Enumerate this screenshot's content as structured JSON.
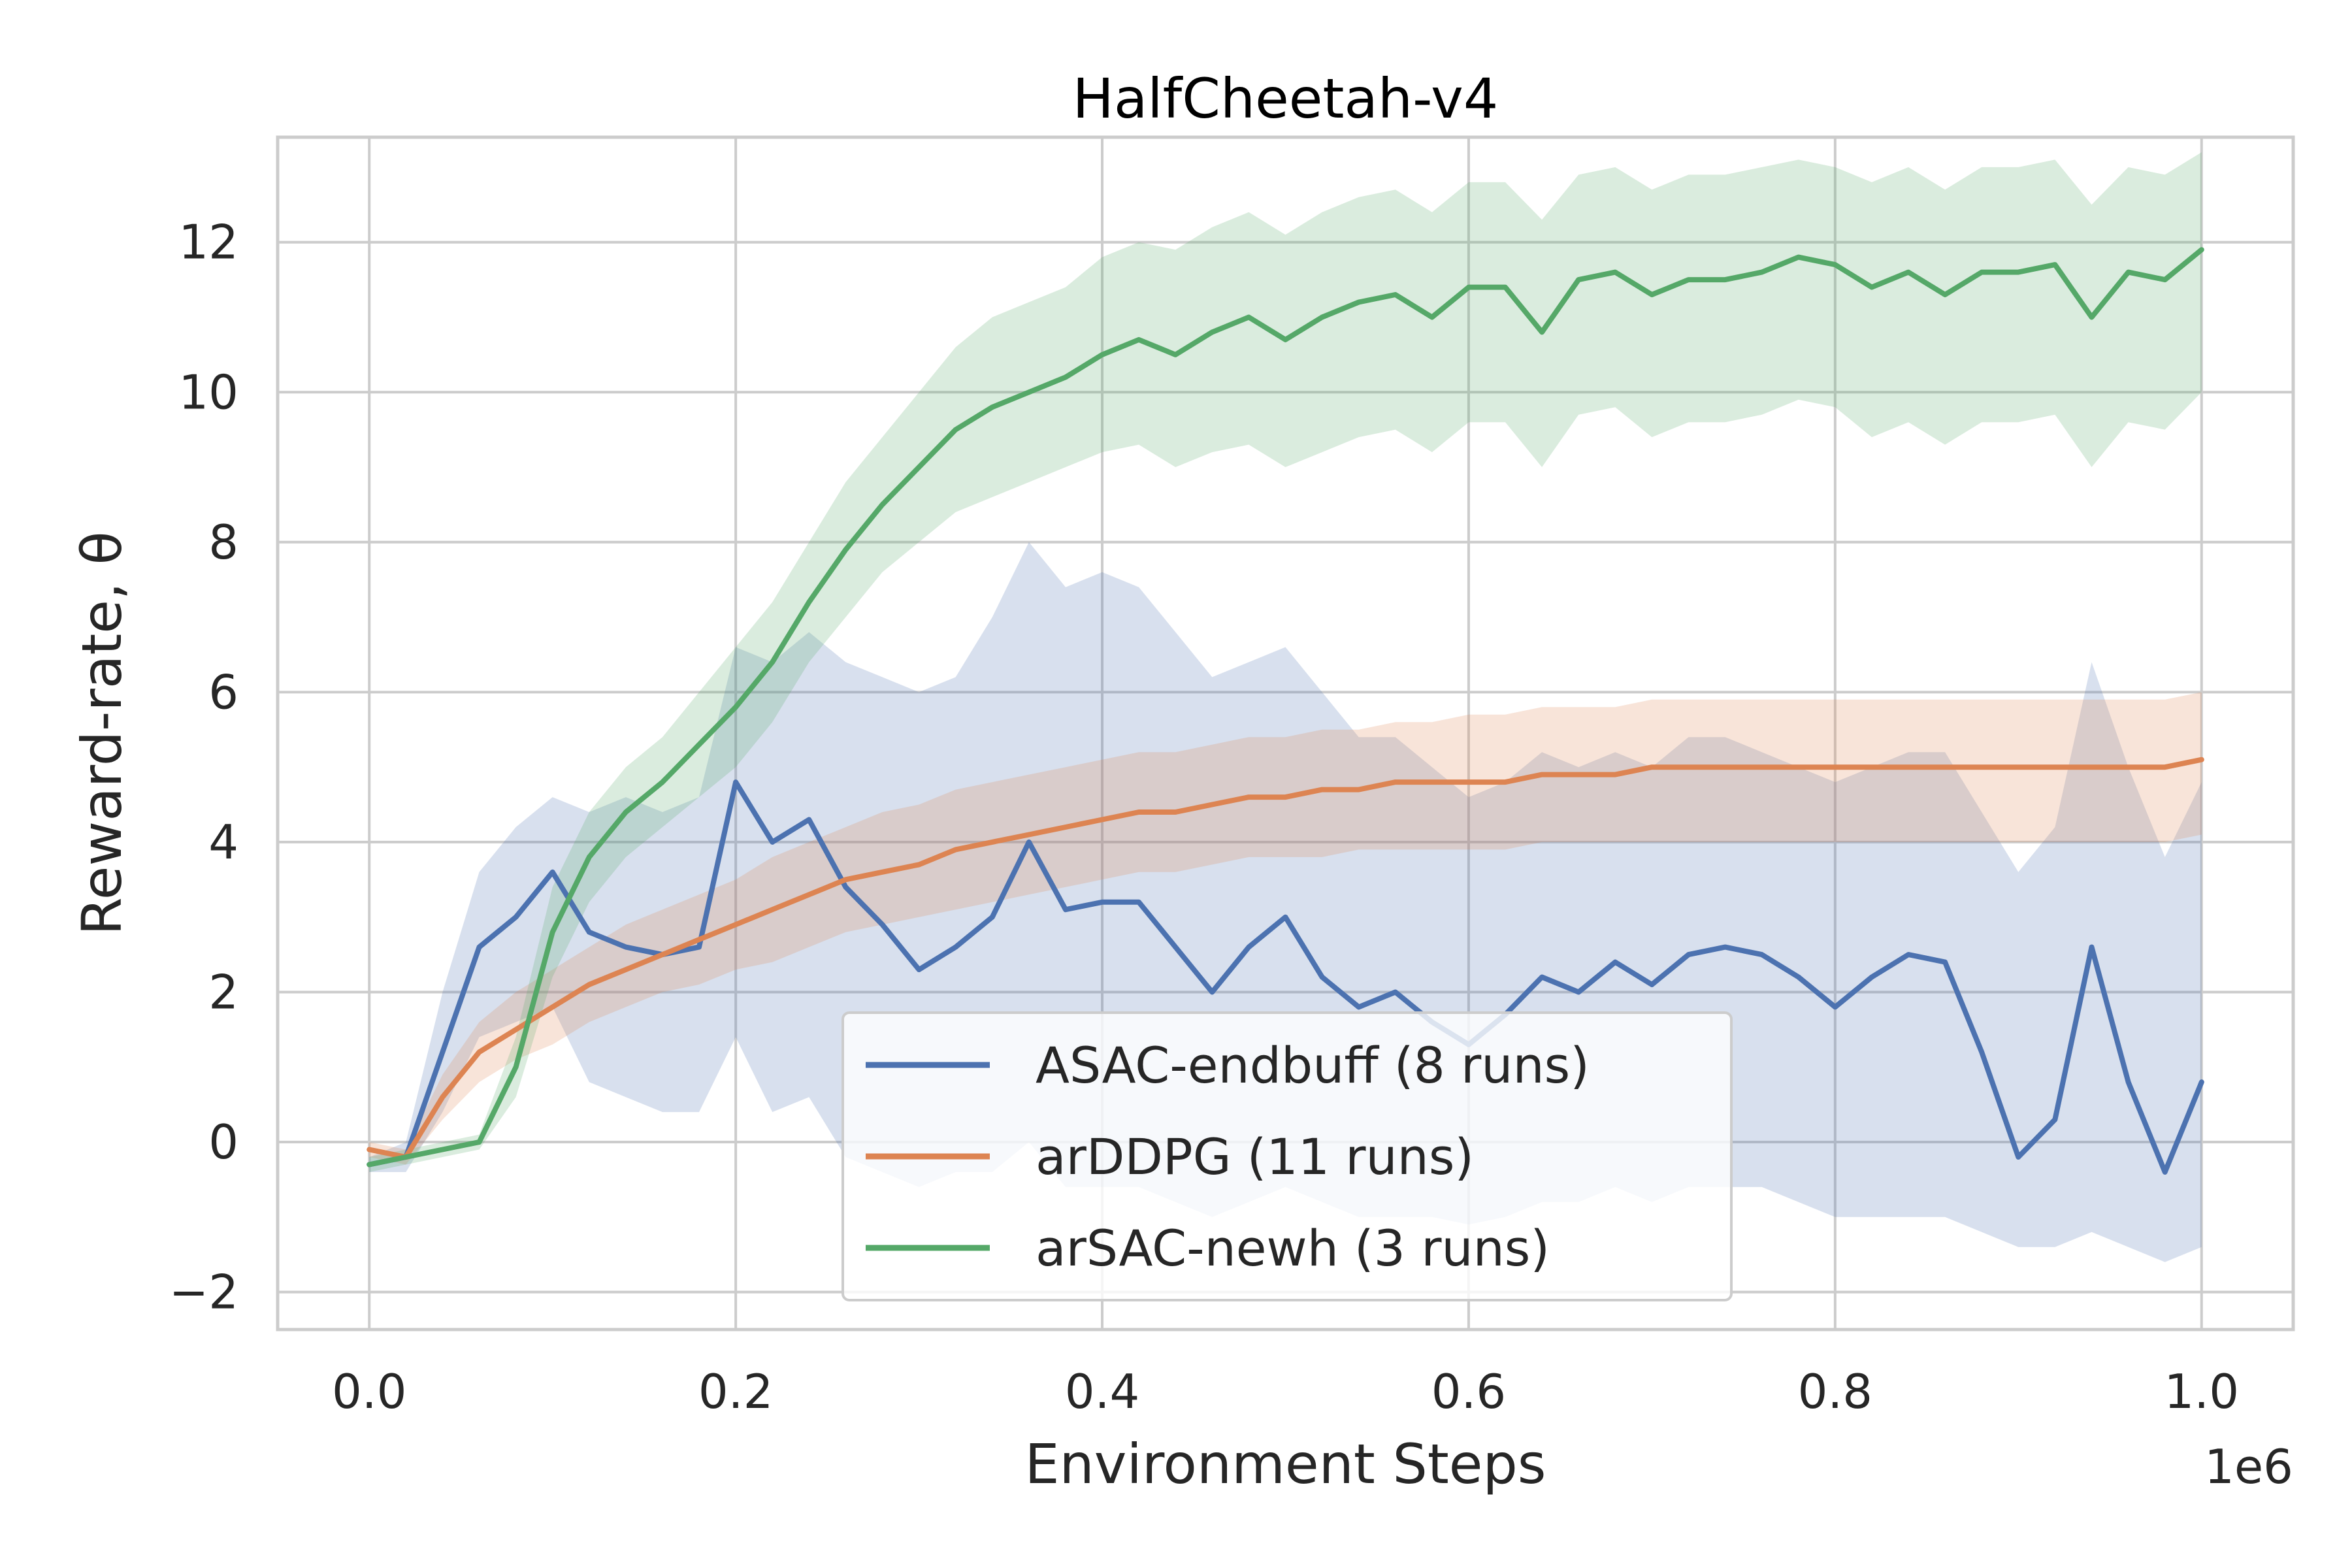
{
  "chart_data": {
    "type": "line",
    "title": "HalfCheetah-v4",
    "xlabel": "Environment Steps",
    "ylabel": "Reward-rate, θ",
    "x_offset_label": "1e6",
    "xlim": [
      -0.05,
      1.05
    ],
    "ylim": [
      -2.5,
      13.4
    ],
    "x_ticks": [
      0.0,
      0.2,
      0.4,
      0.6,
      0.8,
      1.0
    ],
    "x_tick_labels": [
      "0.0",
      "0.2",
      "0.4",
      "0.6",
      "0.8",
      "1.0"
    ],
    "y_ticks": [
      -2,
      0,
      2,
      4,
      6,
      8,
      10,
      12
    ],
    "y_tick_labels": [
      "−2",
      "0",
      "2",
      "4",
      "6",
      "8",
      "10",
      "12"
    ],
    "grid": true,
    "legend_position": "lower center",
    "series": [
      {
        "name": "ASAC-endbuff (8 runs)",
        "color": "#4c72b0",
        "x": [
          0.0,
          0.02,
          0.04,
          0.06,
          0.08,
          0.1,
          0.12,
          0.14,
          0.16,
          0.18,
          0.2,
          0.22,
          0.24,
          0.26,
          0.28,
          0.3,
          0.32,
          0.34,
          0.36,
          0.38,
          0.4,
          0.42,
          0.44,
          0.46,
          0.48,
          0.5,
          0.52,
          0.54,
          0.56,
          0.58,
          0.6,
          0.62,
          0.64,
          0.66,
          0.68,
          0.7,
          0.72,
          0.74,
          0.76,
          0.78,
          0.8,
          0.82,
          0.84,
          0.86,
          0.88,
          0.9,
          0.92,
          0.94,
          0.96,
          0.98,
          1.0
        ],
        "values": [
          -0.3,
          -0.2,
          1.2,
          2.6,
          3.0,
          3.6,
          2.8,
          2.6,
          2.5,
          2.6,
          4.8,
          4.0,
          4.3,
          3.4,
          2.9,
          2.3,
          2.6,
          3.0,
          4.0,
          3.1,
          3.2,
          3.2,
          2.6,
          2.0,
          2.6,
          3.0,
          2.2,
          1.8,
          2.0,
          1.6,
          1.3,
          1.7,
          2.2,
          2.0,
          2.4,
          2.1,
          2.5,
          2.6,
          2.5,
          2.2,
          1.8,
          2.2,
          2.5,
          2.4,
          1.2,
          -0.2,
          0.3,
          2.6,
          0.8,
          -0.4,
          0.8
        ],
        "band_lower": [
          -0.4,
          -0.4,
          0.4,
          1.4,
          1.6,
          1.8,
          0.8,
          0.6,
          0.4,
          0.4,
          1.4,
          0.4,
          0.6,
          -0.2,
          -0.4,
          -0.6,
          -0.4,
          -0.4,
          0.0,
          -0.6,
          -0.6,
          -0.6,
          -0.8,
          -1.0,
          -0.8,
          -0.6,
          -0.8,
          -1.0,
          -1.0,
          -1.0,
          -1.1,
          -1.0,
          -0.8,
          -0.8,
          -0.6,
          -0.8,
          -0.6,
          -0.6,
          -0.6,
          -0.8,
          -1.0,
          -1.0,
          -1.0,
          -1.0,
          -1.2,
          -1.4,
          -1.4,
          -1.2,
          -1.4,
          -1.6,
          -1.4
        ],
        "band_upper": [
          -0.2,
          0.0,
          2.0,
          3.6,
          4.2,
          4.6,
          4.4,
          4.6,
          4.4,
          4.6,
          6.6,
          6.4,
          6.8,
          6.4,
          6.2,
          6.0,
          6.2,
          7.0,
          8.0,
          7.4,
          7.6,
          7.4,
          6.8,
          6.2,
          6.4,
          6.6,
          6.0,
          5.4,
          5.4,
          5.0,
          4.6,
          4.8,
          5.2,
          5.0,
          5.2,
          5.0,
          5.4,
          5.4,
          5.2,
          5.0,
          4.8,
          5.0,
          5.2,
          5.2,
          4.4,
          3.6,
          4.2,
          6.4,
          5.0,
          3.8,
          4.8
        ]
      },
      {
        "name": "arDDPG (11 runs)",
        "color": "#dd8452",
        "x": [
          0.0,
          0.02,
          0.04,
          0.06,
          0.08,
          0.1,
          0.12,
          0.14,
          0.16,
          0.18,
          0.2,
          0.22,
          0.24,
          0.26,
          0.28,
          0.3,
          0.32,
          0.34,
          0.36,
          0.38,
          0.4,
          0.42,
          0.44,
          0.46,
          0.48,
          0.5,
          0.52,
          0.54,
          0.56,
          0.58,
          0.6,
          0.62,
          0.64,
          0.66,
          0.68,
          0.7,
          0.72,
          0.74,
          0.76,
          0.78,
          0.8,
          0.82,
          0.84,
          0.86,
          0.88,
          0.9,
          0.92,
          0.94,
          0.96,
          0.98,
          1.0
        ],
        "values": [
          -0.1,
          -0.2,
          0.6,
          1.2,
          1.5,
          1.8,
          2.1,
          2.3,
          2.5,
          2.7,
          2.9,
          3.1,
          3.3,
          3.5,
          3.6,
          3.7,
          3.9,
          4.0,
          4.1,
          4.2,
          4.3,
          4.4,
          4.4,
          4.5,
          4.6,
          4.6,
          4.7,
          4.7,
          4.8,
          4.8,
          4.8,
          4.8,
          4.9,
          4.9,
          4.9,
          5.0,
          5.0,
          5.0,
          5.0,
          5.0,
          5.0,
          5.0,
          5.0,
          5.0,
          5.0,
          5.0,
          5.0,
          5.0,
          5.0,
          5.0,
          5.1
        ],
        "band_lower": [
          -0.2,
          -0.3,
          0.3,
          0.8,
          1.1,
          1.3,
          1.6,
          1.8,
          2.0,
          2.1,
          2.3,
          2.4,
          2.6,
          2.8,
          2.9,
          3.0,
          3.1,
          3.2,
          3.3,
          3.4,
          3.5,
          3.6,
          3.6,
          3.7,
          3.8,
          3.8,
          3.8,
          3.9,
          3.9,
          3.9,
          3.9,
          3.9,
          4.0,
          4.0,
          4.0,
          4.0,
          4.0,
          4.0,
          4.0,
          4.0,
          4.0,
          4.0,
          4.0,
          4.0,
          4.0,
          4.0,
          4.0,
          4.0,
          4.0,
          4.0,
          4.1
        ],
        "band_upper": [
          0.0,
          -0.1,
          0.9,
          1.6,
          2.0,
          2.3,
          2.6,
          2.9,
          3.1,
          3.3,
          3.5,
          3.8,
          4.0,
          4.2,
          4.4,
          4.5,
          4.7,
          4.8,
          4.9,
          5.0,
          5.1,
          5.2,
          5.2,
          5.3,
          5.4,
          5.4,
          5.5,
          5.5,
          5.6,
          5.6,
          5.7,
          5.7,
          5.8,
          5.8,
          5.8,
          5.9,
          5.9,
          5.9,
          5.9,
          5.9,
          5.9,
          5.9,
          5.9,
          5.9,
          5.9,
          5.9,
          5.9,
          5.9,
          5.9,
          5.9,
          6.0
        ]
      },
      {
        "name": "arSAC-newh (3 runs)",
        "color": "#55a868",
        "x": [
          0.0,
          0.02,
          0.04,
          0.06,
          0.08,
          0.1,
          0.12,
          0.14,
          0.16,
          0.18,
          0.2,
          0.22,
          0.24,
          0.26,
          0.28,
          0.3,
          0.32,
          0.34,
          0.36,
          0.38,
          0.4,
          0.42,
          0.44,
          0.46,
          0.48,
          0.5,
          0.52,
          0.54,
          0.56,
          0.58,
          0.6,
          0.62,
          0.64,
          0.66,
          0.68,
          0.7,
          0.72,
          0.74,
          0.76,
          0.78,
          0.8,
          0.82,
          0.84,
          0.86,
          0.88,
          0.9,
          0.92,
          0.94,
          0.96,
          0.98,
          1.0
        ],
        "values": [
          -0.3,
          -0.2,
          -0.1,
          0.0,
          1.0,
          2.8,
          3.8,
          4.4,
          4.8,
          5.3,
          5.8,
          6.4,
          7.2,
          7.9,
          8.5,
          9.0,
          9.5,
          9.8,
          10.0,
          10.2,
          10.5,
          10.7,
          10.5,
          10.8,
          11.0,
          10.7,
          11.0,
          11.2,
          11.3,
          11.0,
          11.4,
          11.4,
          10.8,
          11.5,
          11.6,
          11.3,
          11.5,
          11.5,
          11.6,
          11.8,
          11.7,
          11.4,
          11.6,
          11.3,
          11.6,
          11.6,
          11.7,
          11.0,
          11.6,
          11.5,
          11.9
        ],
        "band_lower": [
          -0.4,
          -0.3,
          -0.2,
          -0.1,
          0.6,
          2.2,
          3.2,
          3.8,
          4.2,
          4.6,
          5.0,
          5.6,
          6.4,
          7.0,
          7.6,
          8.0,
          8.4,
          8.6,
          8.8,
          9.0,
          9.2,
          9.3,
          9.0,
          9.2,
          9.3,
          9.0,
          9.2,
          9.4,
          9.5,
          9.2,
          9.6,
          9.6,
          9.0,
          9.7,
          9.8,
          9.4,
          9.6,
          9.6,
          9.7,
          9.9,
          9.8,
          9.4,
          9.6,
          9.3,
          9.6,
          9.6,
          9.7,
          9.0,
          9.6,
          9.5,
          10.0
        ],
        "band_upper": [
          -0.2,
          -0.1,
          0.0,
          0.1,
          1.4,
          3.4,
          4.4,
          5.0,
          5.4,
          6.0,
          6.6,
          7.2,
          8.0,
          8.8,
          9.4,
          10.0,
          10.6,
          11.0,
          11.2,
          11.4,
          11.8,
          12.0,
          11.9,
          12.2,
          12.4,
          12.1,
          12.4,
          12.6,
          12.7,
          12.4,
          12.8,
          12.8,
          12.3,
          12.9,
          13.0,
          12.7,
          12.9,
          12.9,
          13.0,
          13.1,
          13.0,
          12.8,
          13.0,
          12.7,
          13.0,
          13.0,
          13.1,
          12.5,
          13.0,
          12.9,
          13.2
        ]
      }
    ]
  }
}
